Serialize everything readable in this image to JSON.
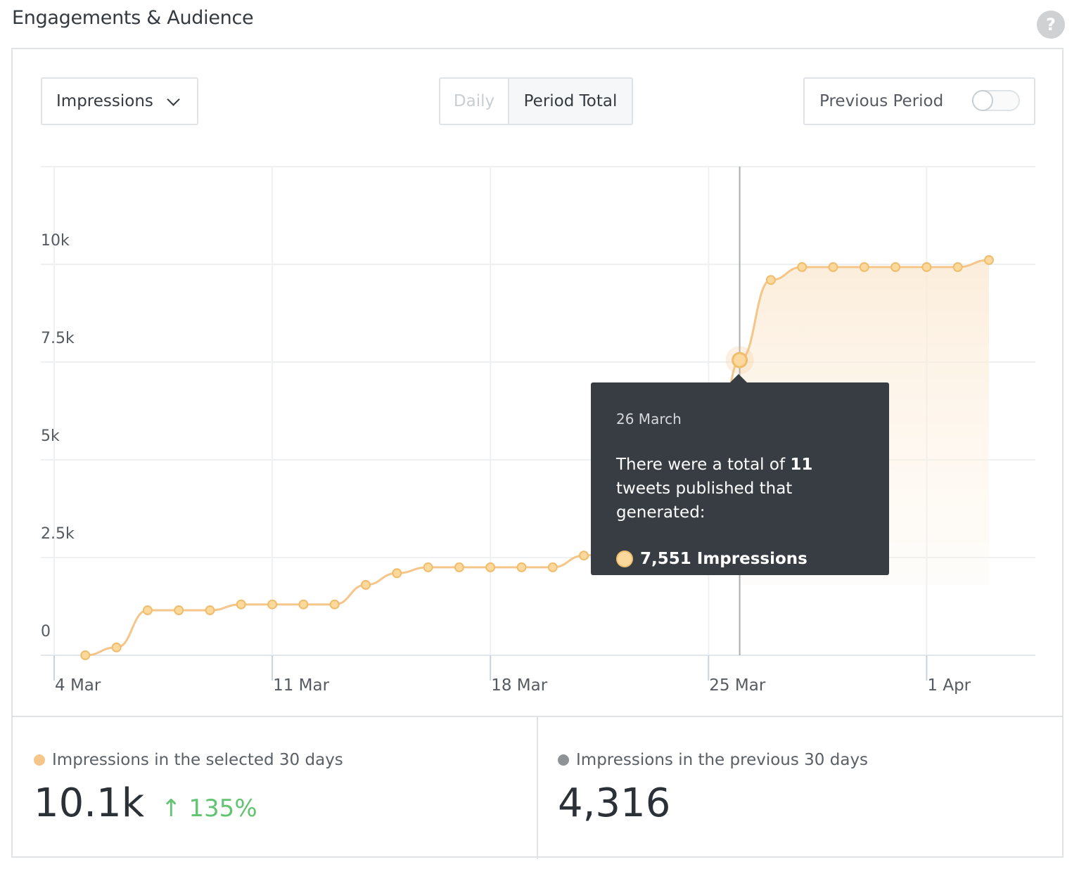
{
  "header": {
    "title": "Engagements & Audience",
    "help_icon": "question-circle-icon"
  },
  "controls": {
    "metric_select": "Impressions",
    "view_toggle": {
      "options": [
        "Daily",
        "Period Total"
      ],
      "selected": "Period Total"
    },
    "previous_period": {
      "label": "Previous Period",
      "enabled": false
    }
  },
  "tooltip": {
    "date": "26 March",
    "text_before": "There were a total of ",
    "count": "11",
    "text_after": " tweets published that generated:",
    "value": "7,551 Impressions"
  },
  "footer": {
    "selected": {
      "label": "Impressions in the selected 30 days",
      "value": "10.1k",
      "change": "↑ 135%",
      "color": "#f5c58a"
    },
    "previous": {
      "label": "Impressions in the previous 30 days",
      "value": "4,316",
      "color": "#8e9398"
    }
  },
  "chart_data": {
    "type": "line",
    "series": [
      {
        "x": [
          "5 Mar",
          "6 Mar",
          "7 Mar",
          "8 Mar",
          "9 Mar",
          "10 Mar",
          "11 Mar",
          "12 Mar",
          "13 Mar",
          "14 Mar",
          "15 Mar",
          "16 Mar",
          "17 Mar",
          "18 Mar",
          "19 Mar",
          "20 Mar",
          "21 Mar",
          "22 Mar",
          "23 Mar",
          "24 Mar",
          "25 Mar",
          "26 Mar",
          "27 Mar",
          "28 Mar",
          "29 Mar",
          "30 Mar",
          "31 Mar",
          "1 Apr",
          "2 Apr",
          "3 Apr"
        ],
        "values": [
          0,
          200,
          1150,
          1150,
          1150,
          1300,
          1300,
          1300,
          1300,
          1800,
          2100,
          2250,
          2250,
          2250,
          2250,
          2250,
          2550,
          2700,
          2800,
          2900,
          3100,
          7551,
          9600,
          9930,
          9930,
          9930,
          9930,
          9930,
          9930,
          10110
        ]
      }
    ],
    "x_ticks": [
      "4 Mar",
      "11 Mar",
      "18 Mar",
      "25 Mar",
      "1 Apr"
    ],
    "y_ticks": [
      "0",
      "2.5k",
      "5k",
      "7.5k",
      "10k"
    ],
    "ylim": [
      0,
      12500
    ],
    "grid": true,
    "highlighted": "26 Mar",
    "color": "#f5c58a"
  }
}
